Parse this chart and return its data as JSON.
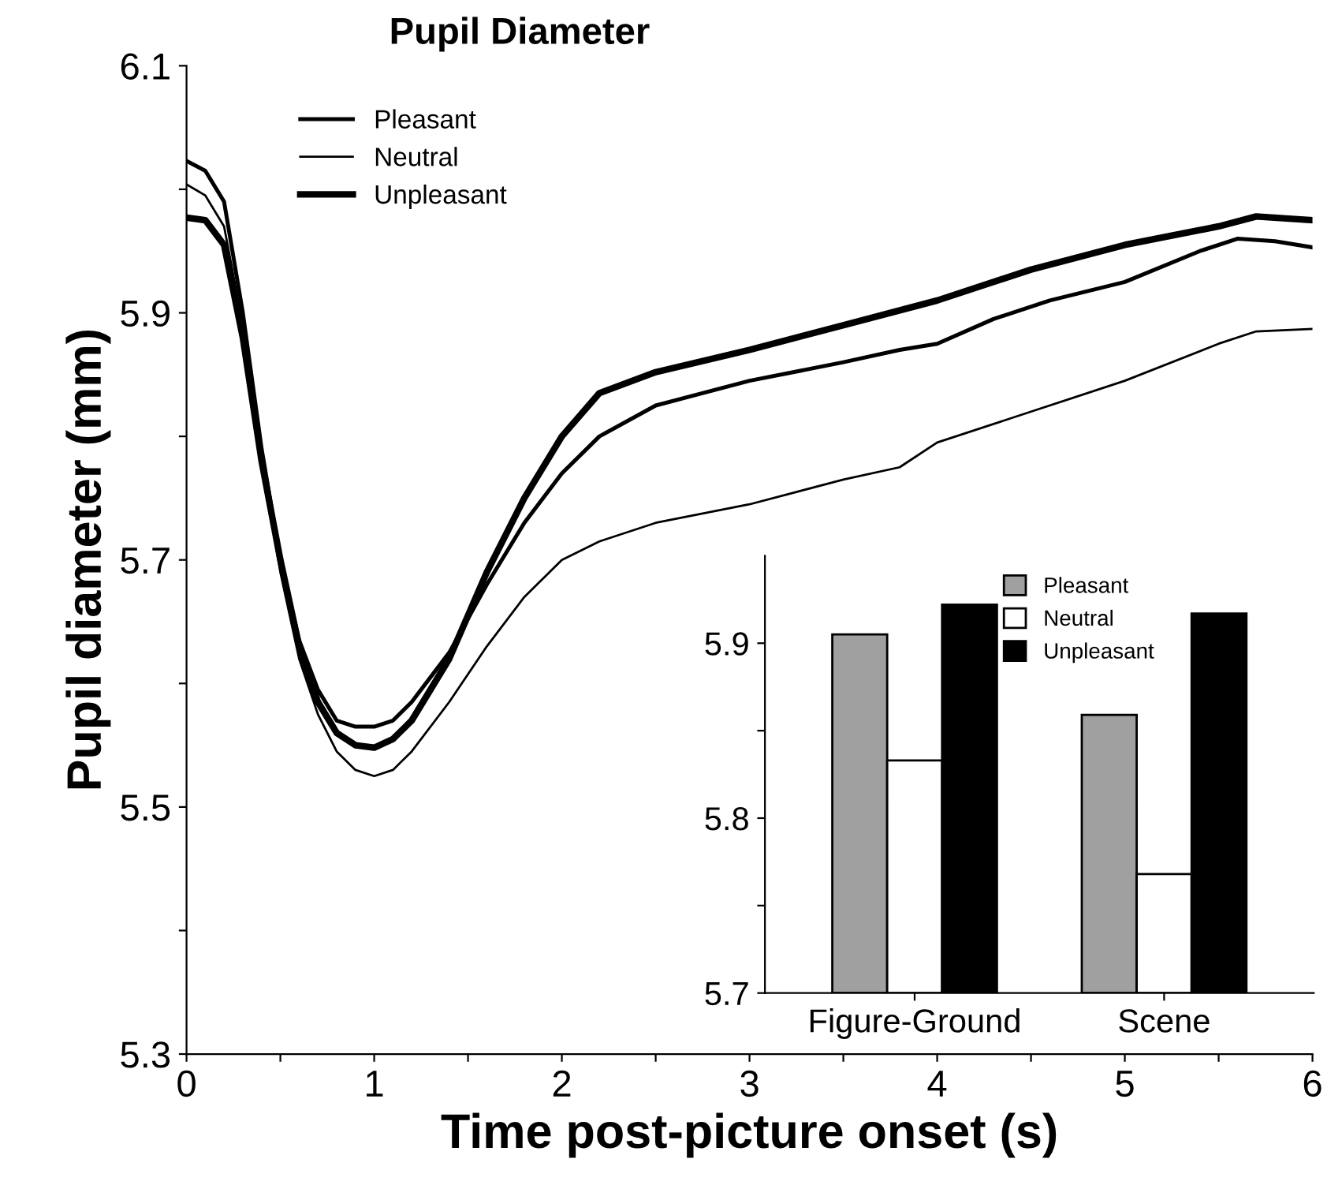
{
  "chart_data": [
    {
      "type": "line",
      "title": "Pupil Diameter",
      "xlabel": "Time post-picture onset (s)",
      "ylabel": "Pupil diameter (mm)",
      "xlim": [
        0,
        6
      ],
      "xticks": [
        0,
        {
          "value": 0.5,
          "label": null
        },
        1,
        {
          "value": 1.5,
          "label": null
        },
        2,
        {
          "value": 2.5,
          "label": null
        },
        3,
        {
          "value": 3.5,
          "label": null
        },
        4,
        {
          "value": 4.5,
          "label": null
        },
        5,
        {
          "value": 5.5,
          "label": null
        },
        6
      ],
      "ylim": [
        5.3,
        6.1
      ],
      "yticks": [
        5.3,
        {
          "value": 5.4,
          "label": null
        },
        5.5,
        {
          "value": 5.6,
          "label": null
        },
        5.7,
        {
          "value": 5.8,
          "label": null
        },
        5.9,
        {
          "value": 6.0,
          "label": null
        },
        6.1
      ],
      "grid": false,
      "legend": "top left",
      "line_style": "solid",
      "marker": "none",
      "series": [
        {
          "name": "Pleasant",
          "color": "#000000",
          "x": [
            0,
            0.1,
            0.2,
            0.3,
            0.4,
            0.5,
            0.6,
            0.7,
            0.8,
            0.9,
            1.0,
            1.1,
            1.2,
            1.4,
            1.6,
            1.8,
            2.0,
            2.2,
            2.5,
            3.0,
            3.5,
            3.8,
            4.0,
            4.3,
            4.6,
            5.0,
            5.4,
            5.6,
            5.8,
            6.0
          ],
          "values": [
            6.023,
            6.015,
            5.99,
            5.9,
            5.79,
            5.7,
            5.635,
            5.595,
            5.57,
            5.565,
            5.565,
            5.57,
            5.585,
            5.625,
            5.68,
            5.73,
            5.77,
            5.8,
            5.825,
            5.845,
            5.86,
            5.87,
            5.875,
            5.895,
            5.91,
            5.925,
            5.95,
            5.96,
            5.958,
            5.953
          ]
        },
        {
          "name": "Neutral",
          "color": "#000000",
          "x": [
            0,
            0.1,
            0.2,
            0.3,
            0.4,
            0.5,
            0.6,
            0.7,
            0.8,
            0.9,
            1.0,
            1.1,
            1.2,
            1.4,
            1.6,
            1.8,
            2.0,
            2.2,
            2.5,
            3.0,
            3.5,
            3.8,
            4.0,
            4.5,
            5.0,
            5.5,
            5.7,
            6.0
          ],
          "values": [
            6.004,
            5.995,
            5.97,
            5.89,
            5.78,
            5.69,
            5.62,
            5.575,
            5.545,
            5.53,
            5.525,
            5.53,
            5.545,
            5.585,
            5.63,
            5.67,
            5.7,
            5.715,
            5.73,
            5.745,
            5.765,
            5.775,
            5.795,
            5.82,
            5.845,
            5.875,
            5.885,
            5.887
          ]
        },
        {
          "name": "Unpleasant",
          "color": "#000000",
          "x": [
            0,
            0.1,
            0.2,
            0.3,
            0.4,
            0.5,
            0.6,
            0.7,
            0.8,
            0.9,
            1.0,
            1.1,
            1.2,
            1.4,
            1.6,
            1.8,
            2.0,
            2.2,
            2.5,
            3.0,
            3.5,
            4.0,
            4.5,
            5.0,
            5.5,
            5.7,
            6.0
          ],
          "values": [
            5.977,
            5.975,
            5.955,
            5.88,
            5.78,
            5.7,
            5.63,
            5.585,
            5.56,
            5.55,
            5.548,
            5.555,
            5.57,
            5.62,
            5.69,
            5.75,
            5.8,
            5.835,
            5.852,
            5.87,
            5.89,
            5.91,
            5.935,
            5.955,
            5.97,
            5.978,
            5.975
          ]
        }
      ]
    },
    {
      "type": "bar",
      "categories": [
        "Figure-Ground",
        "Scene"
      ],
      "ylim": [
        5.7,
        5.95
      ],
      "yticks": [
        5.7,
        {
          "value": 5.75,
          "label": null
        },
        5.8,
        {
          "value": 5.85,
          "label": null
        },
        5.9
      ],
      "grid": false,
      "legend": "top right",
      "series": [
        {
          "name": "Pleasant",
          "color": "#a0a0a0",
          "values": [
            5.905,
            5.859
          ]
        },
        {
          "name": "Neutral",
          "color": "#ffffff",
          "values": [
            5.833,
            5.768
          ]
        },
        {
          "name": "Unpleasant",
          "color": "#000000",
          "values": [
            5.922,
            5.917
          ]
        }
      ]
    }
  ]
}
